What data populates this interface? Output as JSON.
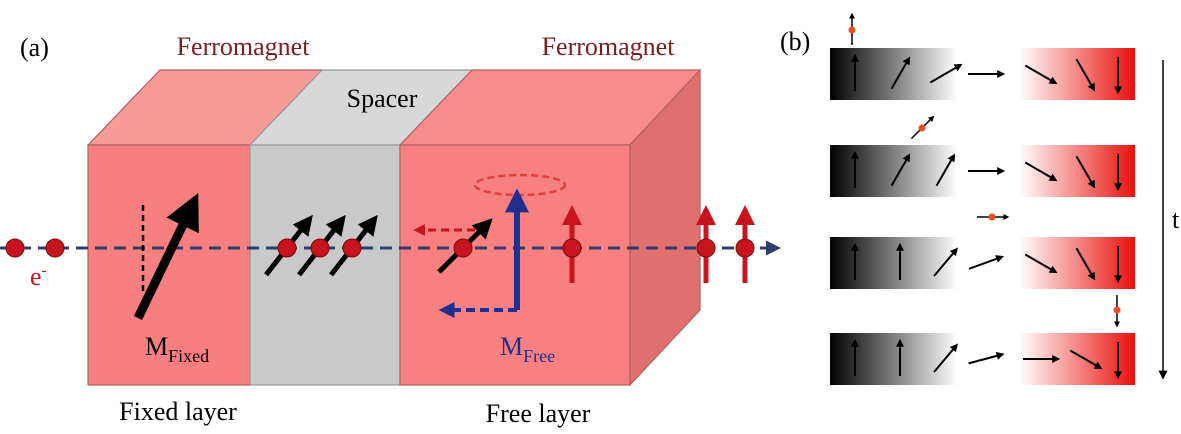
{
  "panel_a": {
    "label": "(a)",
    "left_layer": {
      "title": "Ferromagnet",
      "caption": "Fixed layer",
      "moment": {
        "base": "M",
        "subscript": "Fixed"
      }
    },
    "spacer": "Spacer",
    "right_layer": {
      "title": "Ferromagnet",
      "caption": "Free layer",
      "moment": {
        "base": "M",
        "subscript": "Free"
      }
    },
    "electron": {
      "base": "e",
      "superscript": "-"
    }
  },
  "panel_b": {
    "label": "(b)",
    "time_axis": "t"
  }
}
